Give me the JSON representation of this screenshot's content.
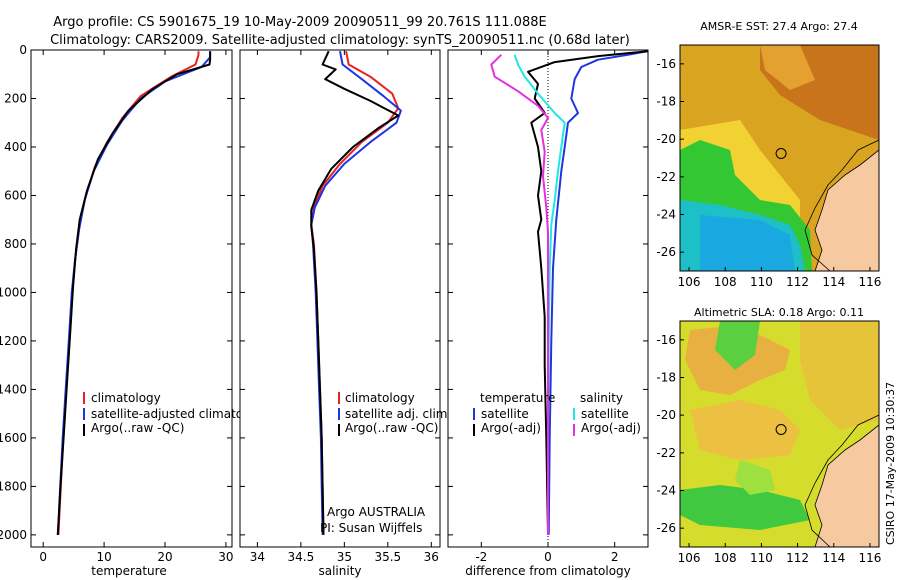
{
  "header": {
    "line1": "Argo profile: CS 5901675_19 10-May-2009 20090511_99 20.761S 111.088E",
    "line2": "Climatology: CARS2009. Satellite-adjusted climatology: synTS_20090511.nc (0.68d later)"
  },
  "colors": {
    "climatology": "#e8231e",
    "satellite": "#1f35e0",
    "argo": "#000000",
    "sal_satellite": "#22e6e6",
    "sal_argo": "#e630e0",
    "land": "#f7c9a0"
  },
  "chart_data": [
    {
      "id": "temperature",
      "type": "line",
      "xlabel": "temperature",
      "ylabel": "",
      "xlim": [
        -2,
        31
      ],
      "ylim": [
        0,
        2050
      ],
      "y_inverted": true,
      "xticks": [
        0,
        10,
        20,
        30
      ],
      "yticks": [
        0,
        200,
        400,
        600,
        800,
        1000,
        1200,
        1400,
        1600,
        1800,
        2000
      ],
      "legend": {
        "position": "lower-left",
        "entries": [
          "climatology",
          "satellite-adjusted climatology",
          "Argo(..raw -QC)"
        ]
      },
      "series": [
        {
          "name": "climatology",
          "color": "#e8231e",
          "points": [
            [
              25.5,
              5
            ],
            [
              25.5,
              20
            ],
            [
              25,
              60
            ],
            [
              21,
              110
            ],
            [
              16,
              190
            ],
            [
              13,
              280
            ],
            [
              10.5,
              380
            ],
            [
              8.5,
              480
            ],
            [
              7,
              600
            ],
            [
              6,
              720
            ],
            [
              5.3,
              850
            ],
            [
              4.8,
              1000
            ],
            [
              4.3,
              1200
            ],
            [
              3.8,
              1400
            ],
            [
              3.3,
              1600
            ],
            [
              2.9,
              1800
            ],
            [
              2.5,
              2000
            ]
          ]
        },
        {
          "name": "satellite-adjusted climatology",
          "color": "#1f35e0",
          "points": [
            [
              27.4,
              5
            ],
            [
              27.4,
              30
            ],
            [
              26,
              70
            ],
            [
              20,
              130
            ],
            [
              16,
              200
            ],
            [
              13,
              290
            ],
            [
              10.5,
              390
            ],
            [
              8.3,
              500
            ],
            [
              6.8,
              620
            ],
            [
              5.9,
              740
            ],
            [
              5.2,
              870
            ],
            [
              4.7,
              1000
            ],
            [
              4.2,
              1200
            ],
            [
              3.7,
              1400
            ],
            [
              3.2,
              1600
            ],
            [
              2.8,
              1800
            ],
            [
              2.4,
              2000
            ]
          ]
        },
        {
          "name": "Argo(..raw -QC)",
          "color": "#000000",
          "points": [
            [
              27.4,
              5
            ],
            [
              27.4,
              40
            ],
            [
              27.3,
              60
            ],
            [
              22,
              100
            ],
            [
              18,
              160
            ],
            [
              14,
              250
            ],
            [
              11.5,
              340
            ],
            [
              9,
              450
            ],
            [
              7.2,
              580
            ],
            [
              6,
              700
            ],
            [
              5.4,
              820
            ],
            [
              4.9,
              980
            ],
            [
              4.4,
              1180
            ],
            [
              3.9,
              1380
            ],
            [
              3.4,
              1580
            ],
            [
              2.9,
              1780
            ],
            [
              2.4,
              2000
            ]
          ]
        }
      ]
    },
    {
      "id": "salinity",
      "type": "line",
      "xlabel": "salinity",
      "ylabel": "",
      "xlim": [
        33.8,
        36.1
      ],
      "ylim": [
        0,
        2050
      ],
      "y_inverted": true,
      "xticks": [
        34,
        34.5,
        35,
        35.5,
        36
      ],
      "yticks": [],
      "legend": {
        "position": "lower-left",
        "entries": [
          "climatology",
          "satellite adj. clim.",
          "Argo(..raw -QC)"
        ]
      },
      "annotation_lines": [
        "Argo AUSTRALIA",
        "PI: Susan Wijffels"
      ],
      "series": [
        {
          "name": "climatology",
          "color": "#e8231e",
          "points": [
            [
              35.02,
              5
            ],
            [
              35.05,
              60
            ],
            [
              35.3,
              110
            ],
            [
              35.55,
              180
            ],
            [
              35.62,
              240
            ],
            [
              35.5,
              300
            ],
            [
              35.2,
              380
            ],
            [
              34.95,
              470
            ],
            [
              34.75,
              560
            ],
            [
              34.65,
              650
            ],
            [
              34.62,
              720
            ],
            [
              34.65,
              800
            ],
            [
              34.68,
              1000
            ],
            [
              34.7,
              1200
            ],
            [
              34.72,
              1400
            ],
            [
              34.74,
              1600
            ],
            [
              34.75,
              1800
            ],
            [
              34.76,
              2000
            ]
          ]
        },
        {
          "name": "satellite adj. clim.",
          "color": "#1f35e0",
          "points": [
            [
              34.95,
              5
            ],
            [
              34.98,
              60
            ],
            [
              35.2,
              120
            ],
            [
              35.45,
              190
            ],
            [
              35.65,
              250
            ],
            [
              35.6,
              300
            ],
            [
              35.3,
              380
            ],
            [
              35.0,
              470
            ],
            [
              34.78,
              560
            ],
            [
              34.66,
              650
            ],
            [
              34.62,
              720
            ],
            [
              34.64,
              800
            ],
            [
              34.67,
              1000
            ],
            [
              34.69,
              1200
            ],
            [
              34.71,
              1400
            ],
            [
              34.73,
              1600
            ],
            [
              34.74,
              1800
            ],
            [
              34.75,
              2000
            ]
          ]
        },
        {
          "name": "Argo(..raw -QC)",
          "color": "#000000",
          "points": [
            [
              34.82,
              5
            ],
            [
              34.75,
              60
            ],
            [
              34.9,
              80
            ],
            [
              34.78,
              120
            ],
            [
              35.0,
              160
            ],
            [
              35.3,
              210
            ],
            [
              35.62,
              270
            ],
            [
              35.4,
              320
            ],
            [
              35.1,
              400
            ],
            [
              34.85,
              490
            ],
            [
              34.7,
              580
            ],
            [
              34.62,
              660
            ],
            [
              34.62,
              730
            ],
            [
              34.65,
              820
            ],
            [
              34.68,
              1000
            ],
            [
              34.7,
              1200
            ],
            [
              34.72,
              1400
            ],
            [
              34.74,
              1600
            ],
            [
              34.75,
              1800
            ],
            [
              34.76,
              2000
            ]
          ]
        }
      ]
    },
    {
      "id": "difference",
      "type": "line",
      "xlabel": "difference from climatology",
      "ylabel": "",
      "xlim": [
        -3,
        3
      ],
      "ylim": [
        0,
        2050
      ],
      "y_inverted": true,
      "xticks": [
        -2,
        0,
        2
      ],
      "yticks": [],
      "reference_line_x": 0,
      "legend": {
        "position": "lower",
        "columns": [
          {
            "header": "temperature",
            "entries": [
              "satellite",
              "Argo(-adj)"
            ]
          },
          {
            "header": "salinity",
            "entries": [
              "satellite",
              "Argo(-adj)"
            ]
          }
        ]
      },
      "series": [
        {
          "name": "temperature satellite",
          "color": "#1f35e0",
          "points": [
            [
              3.0,
              5
            ],
            [
              2.4,
              20
            ],
            [
              1.5,
              40
            ],
            [
              1.0,
              70
            ],
            [
              0.8,
              120
            ],
            [
              0.7,
              200
            ],
            [
              0.9,
              260
            ],
            [
              0.6,
              300
            ],
            [
              0.5,
              400
            ],
            [
              0.4,
              500
            ],
            [
              0.25,
              700
            ],
            [
              0.15,
              900
            ],
            [
              0.1,
              1200
            ],
            [
              0.05,
              1600
            ],
            [
              0.02,
              2000
            ]
          ]
        },
        {
          "name": "temperature Argo(-adj)",
          "color": "#000000",
          "points": [
            [
              3.0,
              5
            ],
            [
              1.5,
              25
            ],
            [
              0.2,
              50
            ],
            [
              -0.6,
              90
            ],
            [
              -0.3,
              140
            ],
            [
              -0.4,
              200
            ],
            [
              -0.1,
              260
            ],
            [
              -0.5,
              300
            ],
            [
              -0.3,
              400
            ],
            [
              -0.2,
              500
            ],
            [
              -0.3,
              600
            ],
            [
              -0.2,
              700
            ],
            [
              -0.3,
              750
            ],
            [
              -0.2,
              900
            ],
            [
              -0.1,
              1100
            ],
            [
              -0.1,
              1300
            ],
            [
              -0.05,
              1600
            ],
            [
              0.0,
              2000
            ]
          ]
        },
        {
          "name": "salinity satellite",
          "color": "#22e6e6",
          "points": [
            [
              -1.0,
              20
            ],
            [
              -0.9,
              60
            ],
            [
              -0.7,
              110
            ],
            [
              -0.3,
              180
            ],
            [
              0.2,
              260
            ],
            [
              0.5,
              300
            ],
            [
              0.4,
              400
            ],
            [
              0.3,
              500
            ],
            [
              0.2,
              620
            ],
            [
              0.1,
              720
            ],
            [
              0.05,
              900
            ],
            [
              0.02,
              1200
            ],
            [
              0.0,
              1600
            ],
            [
              0.0,
              2000
            ]
          ]
        },
        {
          "name": "salinity Argo(-adj)",
          "color": "#e630e0",
          "points": [
            [
              -1.4,
              20
            ],
            [
              -1.7,
              60
            ],
            [
              -1.6,
              110
            ],
            [
              -0.9,
              170
            ],
            [
              -0.3,
              230
            ],
            [
              0.0,
              280
            ],
            [
              -0.2,
              330
            ],
            [
              -0.1,
              420
            ],
            [
              -0.15,
              520
            ],
            [
              -0.05,
              650
            ],
            [
              0.0,
              750
            ],
            [
              0.0,
              1000
            ],
            [
              0.0,
              1400
            ],
            [
              0.0,
              2000
            ]
          ]
        }
      ]
    },
    {
      "id": "sst_map",
      "type": "heatmap",
      "title": "AMSR-E SST: 27.4 Argo: 27.4",
      "xlim": [
        105.5,
        116.5
      ],
      "ylim": [
        -27,
        -15
      ],
      "xticks": [
        106,
        108,
        110,
        112,
        114,
        116
      ],
      "yticks": [
        -16,
        -18,
        -20,
        -22,
        -24,
        -26
      ],
      "marker": {
        "lon": 111.088,
        "lat": -20.761
      }
    },
    {
      "id": "sla_map",
      "type": "heatmap",
      "title": "Altimetric SLA: 0.18 Argo: 0.11",
      "xlim": [
        105.5,
        116.5
      ],
      "ylim": [
        -27,
        -15
      ],
      "xticks": [
        106,
        108,
        110,
        112,
        114,
        116
      ],
      "yticks": [
        -16,
        -18,
        -20,
        -22,
        -24,
        -26
      ],
      "marker": {
        "lon": 111.088,
        "lat": -20.761
      }
    }
  ],
  "footer": {
    "stamp": "CSIRO 17-May-2009 10:30:37"
  }
}
